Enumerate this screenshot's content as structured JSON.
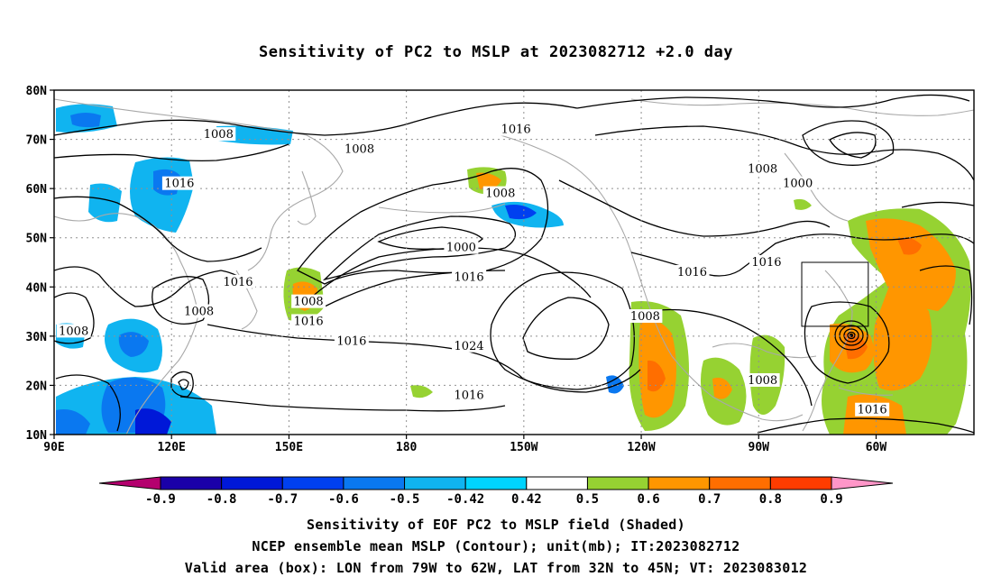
{
  "title": "Sensitivity of PC2 to MSLP at 2023082712 +2.0 day",
  "lat_labels": [
    "80N",
    "70N",
    "60N",
    "50N",
    "40N",
    "30N",
    "20N",
    "10N"
  ],
  "lon_labels": [
    "90E",
    "120E",
    "150E",
    "180",
    "150W",
    "120W",
    "90W",
    "60W"
  ],
  "colorbar": {
    "labels": [
      "-0.9",
      "-0.8",
      "-0.7",
      "-0.6",
      "-0.5",
      "-0.42",
      "0.42",
      "0.5",
      "0.6",
      "0.7",
      "0.8",
      "0.9"
    ],
    "colors": [
      "#b4006e",
      "#1a00a8",
      "#0018d8",
      "#0040f0",
      "#0a78f0",
      "#10b4f0",
      "#00d4ff",
      "#ffffff",
      "#96d232",
      "#ff9600",
      "#ff6e00",
      "#ff3c00",
      "#ff0000",
      "#ff96c8"
    ]
  },
  "contour_labels": [
    {
      "text": "1008",
      "lon": 132,
      "lat": 71
    },
    {
      "text": "1008",
      "lon": 168,
      "lat": 68
    },
    {
      "text": "1016",
      "lon": -152,
      "lat": 72
    },
    {
      "text": "1008",
      "lon": -156,
      "lat": 59
    },
    {
      "text": "1008",
      "lon": -89,
      "lat": 64
    },
    {
      "text": "1000",
      "lon": -80,
      "lat": 61
    },
    {
      "text": "1016",
      "lon": 122,
      "lat": 61
    },
    {
      "text": "1000",
      "lon": -166,
      "lat": 48
    },
    {
      "text": "1016",
      "lon": -164,
      "lat": 42
    },
    {
      "text": "1016",
      "lon": -107,
      "lat": 43
    },
    {
      "text": "1016",
      "lon": -88,
      "lat": 45
    },
    {
      "text": "1016",
      "lon": 137,
      "lat": 41
    },
    {
      "text": "1008",
      "lon": 155,
      "lat": 37
    },
    {
      "text": "1016",
      "lon": 155,
      "lat": 33
    },
    {
      "text": "1008",
      "lon": 127,
      "lat": 35
    },
    {
      "text": "1016",
      "lon": 166,
      "lat": 29
    },
    {
      "text": "1008",
      "lon": 95,
      "lat": 31
    },
    {
      "text": "1024",
      "lon": -164,
      "lat": 28
    },
    {
      "text": "1016",
      "lon": -164,
      "lat": 18
    },
    {
      "text": "1008",
      "lon": -119,
      "lat": 34
    },
    {
      "text": "1008",
      "lon": -89,
      "lat": 21
    },
    {
      "text": "1016",
      "lon": -61,
      "lat": 15
    }
  ],
  "valid_box": {
    "lon_w": -79,
    "lon_e": -62,
    "lat_s": 32,
    "lat_n": 45
  },
  "captions": [
    "Sensitivity of EOF PC2 to MSLP field (Shaded)",
    "NCEP ensemble mean MSLP (Contour); unit(mb); IT:2023082712",
    "Valid area (box): LON from 79W to 62W, LAT from 32N to 45N; VT: 2023083012"
  ]
}
